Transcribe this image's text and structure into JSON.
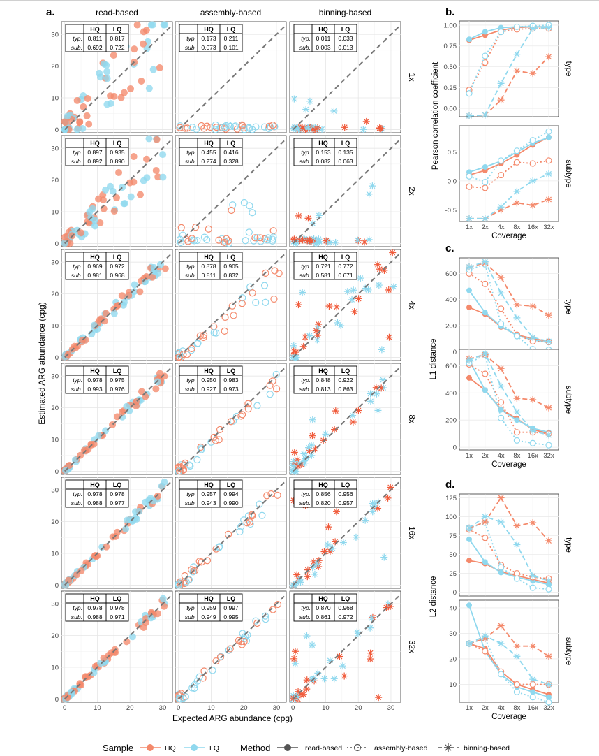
{
  "figure": {
    "panel_labels": {
      "a": "a.",
      "b": "b.",
      "c": "c.",
      "d": "d."
    },
    "legend": {
      "sample_title": "Sample",
      "sample_items": [
        {
          "label": "HQ",
          "color": "#f4896b"
        },
        {
          "label": "LQ",
          "color": "#8fd8ee"
        }
      ],
      "method_title": "Method",
      "method_items": [
        {
          "label": "read-based",
          "line": "solid",
          "marker": "filled-circle"
        },
        {
          "label": "assembly-based",
          "line": "dotted",
          "marker": "open-circle"
        },
        {
          "label": "binning-based",
          "line": "dashed",
          "marker": "asterisk"
        }
      ]
    },
    "colors": {
      "HQ": "#f4896b",
      "LQ": "#8fd8ee",
      "HQ_dark": "#f05a3a",
      "overlap": "#a8a8a8"
    }
  },
  "chart_data": [
    {
      "type": "scatter",
      "panel": "a",
      "columns": [
        "read-based",
        "assembly-based",
        "binning-based"
      ],
      "rows": [
        "1x",
        "2x",
        "4x",
        "8x",
        "16x",
        "32x"
      ],
      "xlabel": "Expected ARG abundance (cpg)",
      "ylabel": "Estimated ARG abundance (cpg)",
      "xlim": [
        -1,
        33
      ],
      "ylim": [
        -1,
        34
      ],
      "xticks": [
        0,
        10,
        20,
        30
      ],
      "yticks": [
        0,
        10,
        20,
        30
      ],
      "grid": true,
      "table_header": [
        "HQ",
        "LQ"
      ],
      "table_row_labels": [
        "typ.",
        "sub."
      ],
      "tables": {
        "read-based": [
          [
            [
              "0.811",
              "0.817"
            ],
            [
              "0.692",
              "0.722"
            ]
          ],
          [
            [
              "0.897",
              "0.935"
            ],
            [
              "0.892",
              "0.890"
            ]
          ],
          [
            [
              "0.969",
              "0.972"
            ],
            [
              "0.981",
              "0.968"
            ]
          ],
          [
            [
              "0.978",
              "0.975"
            ],
            [
              "0.993",
              "0.976"
            ]
          ],
          [
            [
              "0.978",
              "0.978"
            ],
            [
              "0.988",
              "0.977"
            ]
          ],
          [
            [
              "0.978",
              "0.978"
            ],
            [
              "0.988",
              "0.971"
            ]
          ]
        ],
        "assembly-based": [
          [
            [
              "0.173",
              "0.211"
            ],
            [
              "0.073",
              "0.101"
            ]
          ],
          [
            [
              "0.455",
              "0.416"
            ],
            [
              "0.274",
              "0.328"
            ]
          ],
          [
            [
              "0.878",
              "0.905"
            ],
            [
              "0.811",
              "0.832"
            ]
          ],
          [
            [
              "0.950",
              "0.983"
            ],
            [
              "0.927",
              "0.973"
            ]
          ],
          [
            [
              "0.957",
              "0.994"
            ],
            [
              "0.943",
              "0.990"
            ]
          ],
          [
            [
              "0.959",
              "0.997"
            ],
            [
              "0.949",
              "0.995"
            ]
          ]
        ],
        "binning-based": [
          [
            [
              "0.011",
              "0.033"
            ],
            [
              "0.003",
              "0.013"
            ]
          ],
          [
            [
              "0.153",
              "0.135"
            ],
            [
              "0.082",
              "0.063"
            ]
          ],
          [
            [
              "0.721",
              "0.772"
            ],
            [
              "0.581",
              "0.671"
            ]
          ],
          [
            [
              "0.848",
              "0.922"
            ],
            [
              "0.813",
              "0.863"
            ]
          ],
          [
            [
              "0.856",
              "0.956"
            ],
            [
              "0.820",
              "0.957"
            ]
          ],
          [
            [
              "0.870",
              "0.968"
            ],
            [
              "0.861",
              "0.972"
            ]
          ]
        ]
      }
    },
    {
      "type": "line",
      "panel": "b",
      "ylabel": "Pearson correlation coefficient",
      "xlabel": "Coverage",
      "categories": [
        "1x",
        "2x",
        "4x",
        "8x",
        "16x",
        "32x"
      ],
      "facets": [
        {
          "strip": "type",
          "ylim": [
            -0.1,
            1.05
          ],
          "yticks": [
            0,
            0.25,
            0.5,
            0.75,
            1
          ],
          "ytick_labels": [
            "0.00",
            "0.25",
            "0.50",
            "0.75",
            "1.00"
          ],
          "series": [
            {
              "method": "read-based",
              "sample": "HQ",
              "values": [
                0.82,
                0.88,
                0.94,
                0.97,
                0.98,
                0.98
              ]
            },
            {
              "method": "read-based",
              "sample": "LQ",
              "values": [
                0.83,
                0.92,
                0.97,
                0.98,
                0.98,
                0.98
              ]
            },
            {
              "method": "assembly-based",
              "sample": "HQ",
              "values": [
                0.22,
                0.55,
                0.92,
                0.95,
                0.96,
                0.96
              ]
            },
            {
              "method": "assembly-based",
              "sample": "LQ",
              "values": [
                0.18,
                0.63,
                0.92,
                0.98,
                0.99,
                1.0
              ]
            },
            {
              "method": "binning-based",
              "sample": "HQ",
              "values": [
                -0.09,
                -0.08,
                0.1,
                0.45,
                0.42,
                0.62
              ]
            },
            {
              "method": "binning-based",
              "sample": "LQ",
              "values": [
                -0.09,
                -0.08,
                0.3,
                0.65,
                0.96,
                0.97
              ]
            }
          ]
        },
        {
          "strip": "subtype",
          "ylim": [
            -0.7,
            0.95
          ],
          "yticks": [
            -0.5,
            0,
            0.5
          ],
          "ytick_labels": [
            "-0.5",
            "0.0",
            "0.5"
          ],
          "series": [
            {
              "method": "read-based",
              "sample": "HQ",
              "values": [
                0.1,
                0.18,
                0.3,
                0.45,
                0.62,
                0.75
              ]
            },
            {
              "method": "read-based",
              "sample": "LQ",
              "values": [
                0.15,
                0.24,
                0.34,
                0.5,
                0.65,
                0.75
              ]
            },
            {
              "method": "assembly-based",
              "sample": "HQ",
              "values": [
                -0.1,
                -0.12,
                0.1,
                0.32,
                0.3,
                0.35
              ]
            },
            {
              "method": "assembly-based",
              "sample": "LQ",
              "values": [
                0.08,
                -0.02,
                0.35,
                0.52,
                0.7,
                0.85
              ]
            },
            {
              "method": "binning-based",
              "sample": "HQ",
              "values": [
                -0.65,
                -0.65,
                -0.5,
                -0.38,
                -0.42,
                -0.32
              ]
            },
            {
              "method": "binning-based",
              "sample": "LQ",
              "values": [
                -0.65,
                -0.65,
                -0.45,
                -0.18,
                0.0,
                0.12
              ]
            }
          ]
        }
      ]
    },
    {
      "type": "line",
      "panel": "c",
      "ylabel": "L1 distance",
      "xlabel": "Coverage",
      "categories": [
        "1x",
        "2x",
        "4x",
        "8x",
        "16x",
        "32x"
      ],
      "facets": [
        {
          "strip": "type",
          "ylim": [
            -30,
            720
          ],
          "yticks": [
            0,
            200,
            400,
            600
          ],
          "ytick_labels": [
            "0",
            "200",
            "400",
            "600"
          ],
          "series": [
            {
              "method": "read-based",
              "sample": "HQ",
              "values": [
                340,
                290,
                190,
                130,
                100,
                80
              ]
            },
            {
              "method": "read-based",
              "sample": "LQ",
              "values": [
                470,
                300,
                195,
                125,
                90,
                70
              ]
            },
            {
              "method": "assembly-based",
              "sample": "HQ",
              "values": [
                600,
                520,
                330,
                130,
                80,
                75
              ]
            },
            {
              "method": "assembly-based",
              "sample": "LQ",
              "values": [
                630,
                670,
                215,
                120,
                20,
                15
              ]
            },
            {
              "method": "binning-based",
              "sample": "HQ",
              "values": [
                650,
                680,
                570,
                360,
                350,
                280
              ]
            },
            {
              "method": "binning-based",
              "sample": "LQ",
              "values": [
                650,
                690,
                450,
                260,
                110,
                80
              ]
            }
          ]
        },
        {
          "strip": "subtype",
          "ylim": [
            -20,
            720
          ],
          "yticks": [
            0,
            200,
            400,
            600
          ],
          "ytick_labels": [
            "0",
            "200",
            "400",
            "600"
          ],
          "series": [
            {
              "method": "read-based",
              "sample": "HQ",
              "values": [
                510,
                420,
                280,
                210,
                130,
                100
              ]
            },
            {
              "method": "read-based",
              "sample": "LQ",
              "values": [
                640,
                420,
                275,
                200,
                140,
                110
              ]
            },
            {
              "method": "assembly-based",
              "sample": "HQ",
              "values": [
                610,
                540,
                330,
                110,
                110,
                100
              ]
            },
            {
              "method": "assembly-based",
              "sample": "LQ",
              "values": [
                620,
                680,
                215,
                50,
                30,
                15
              ]
            },
            {
              "method": "binning-based",
              "sample": "HQ",
              "values": [
                650,
                680,
                580,
                360,
                350,
                290
              ]
            },
            {
              "method": "binning-based",
              "sample": "LQ",
              "values": [
                640,
                690,
                450,
                260,
                120,
                90
              ]
            }
          ]
        }
      ]
    },
    {
      "type": "line",
      "panel": "d",
      "ylabel": "L2 distance",
      "xlabel": "Coverage",
      "categories": [
        "1x",
        "2x",
        "4x",
        "8x",
        "16x",
        "32x"
      ],
      "facets": [
        {
          "strip": "type",
          "ylim": [
            -5,
            130
          ],
          "yticks": [
            0,
            25,
            50,
            75,
            100,
            125
          ],
          "ytick_labels": [
            "0",
            "25",
            "50",
            "75",
            "100",
            "125"
          ],
          "series": [
            {
              "method": "read-based",
              "sample": "HQ",
              "values": [
                42,
                38,
                27,
                22,
                17,
                12
              ]
            },
            {
              "method": "read-based",
              "sample": "LQ",
              "values": [
                70,
                40,
                26,
                20,
                15,
                10
              ]
            },
            {
              "method": "assembly-based",
              "sample": "HQ",
              "values": [
                83,
                72,
                36,
                25,
                20,
                18
              ]
            },
            {
              "method": "assembly-based",
              "sample": "LQ",
              "values": [
                85,
                92,
                33,
                18,
                6,
                4
              ]
            },
            {
              "method": "binning-based",
              "sample": "HQ",
              "values": [
                85,
                93,
                125,
                88,
                92,
                68
              ]
            },
            {
              "method": "binning-based",
              "sample": "LQ",
              "values": [
                85,
                100,
                93,
                63,
                22,
                15
              ]
            }
          ]
        },
        {
          "strip": "subtype",
          "ylim": [
            3,
            43
          ],
          "yticks": [
            10,
            20,
            30,
            40
          ],
          "ytick_labels": [
            "10",
            "20",
            "30",
            "40"
          ],
          "series": [
            {
              "method": "read-based",
              "sample": "HQ",
              "values": [
                26,
                24,
                15,
                10,
                8,
                6
              ]
            },
            {
              "method": "read-based",
              "sample": "LQ",
              "values": [
                41,
                23,
                14,
                9,
                7,
                5
              ]
            },
            {
              "method": "assembly-based",
              "sample": "HQ",
              "values": [
                26,
                23,
                15,
                10,
                10,
                10
              ]
            },
            {
              "method": "assembly-based",
              "sample": "LQ",
              "values": [
                26,
                28,
                14,
                7,
                5,
                3
              ]
            },
            {
              "method": "binning-based",
              "sample": "HQ",
              "values": [
                26,
                28,
                33,
                25,
                25,
                21
              ]
            },
            {
              "method": "binning-based",
              "sample": "LQ",
              "values": [
                26,
                29,
                26,
                21,
                12,
                10
              ]
            }
          ]
        }
      ]
    }
  ]
}
